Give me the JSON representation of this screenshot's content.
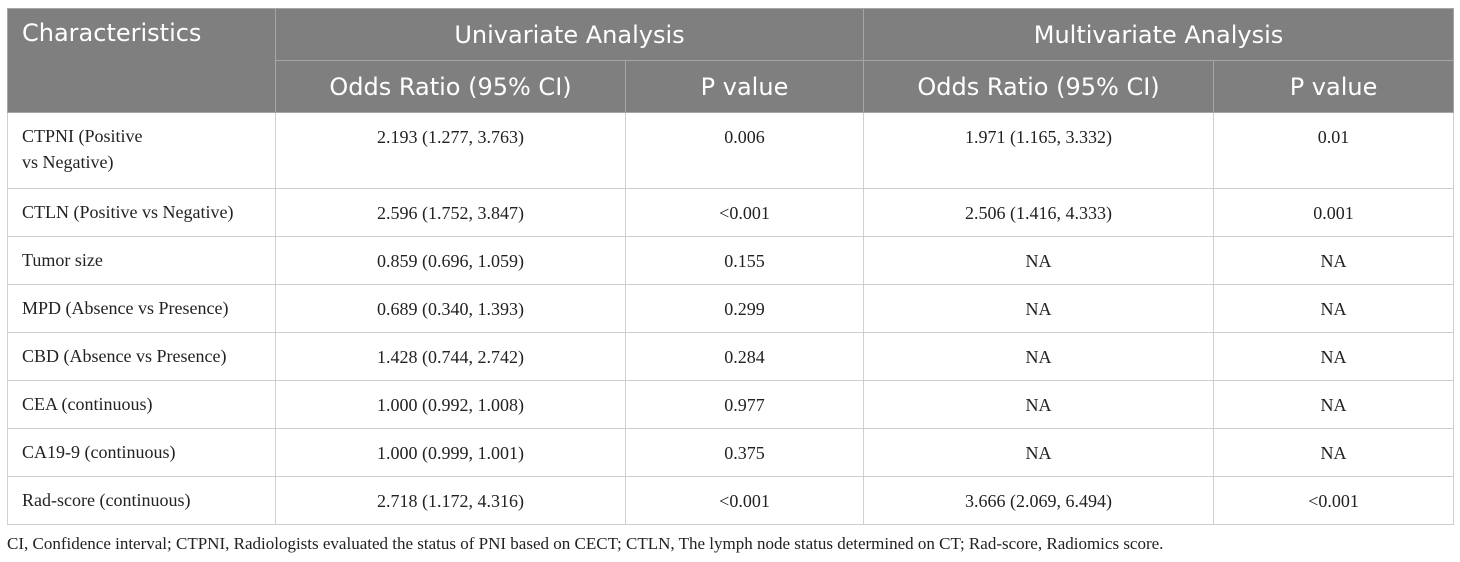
{
  "header": {
    "characteristics": "Characteristics",
    "univariate": "Univariate Analysis",
    "multivariate": "Multivariate Analysis",
    "uni_or": "Odds Ratio (95% CI)",
    "uni_p": "P value",
    "multi_or": "Odds Ratio (95% CI)",
    "multi_p": "P value"
  },
  "rows": [
    {
      "label_line1": "CTPNI (Positive",
      "label_line2": "vs Negative)",
      "uni_or": "2.193 (1.277, 3.763)",
      "uni_p": "0.006",
      "multi_or": "1.971 (1.165, 3.332)",
      "multi_p": "0.01"
    },
    {
      "label": "CTLN (Positive vs Negative)",
      "uni_or": "2.596 (1.752, 3.847)",
      "uni_p": "<0.001",
      "multi_or": "2.506 (1.416, 4.333)",
      "multi_p": "0.001"
    },
    {
      "label": "Tumor size",
      "uni_or": "0.859 (0.696, 1.059)",
      "uni_p": "0.155",
      "multi_or": "NA",
      "multi_p": "NA"
    },
    {
      "label": "MPD (Absence vs Presence)",
      "uni_or": "0.689 (0.340, 1.393)",
      "uni_p": "0.299",
      "multi_or": "NA",
      "multi_p": "NA"
    },
    {
      "label": "CBD (Absence vs Presence)",
      "uni_or": "1.428 (0.744, 2.742)",
      "uni_p": "0.284",
      "multi_or": "NA",
      "multi_p": "NA"
    },
    {
      "label": "CEA (continuous)",
      "uni_or": "1.000 (0.992, 1.008)",
      "uni_p": "0.977",
      "multi_or": "NA",
      "multi_p": "NA"
    },
    {
      "label": "CA19-9 (continuous)",
      "uni_or": "1.000 (0.999, 1.001)",
      "uni_p": "0.375",
      "multi_or": "NA",
      "multi_p": "NA"
    },
    {
      "label": "Rad-score (continuous)",
      "uni_or": "2.718 (1.172, 4.316)",
      "uni_p": "<0.001",
      "multi_or": "3.666 (2.069, 6.494)",
      "multi_p": "<0.001"
    }
  ],
  "footnote": "CI, Confidence interval; CTPNI, Radiologists evaluated the status of PNI based on CECT; CTLN, The lymph node status determined on CT; Rad-score, Radiomics score."
}
